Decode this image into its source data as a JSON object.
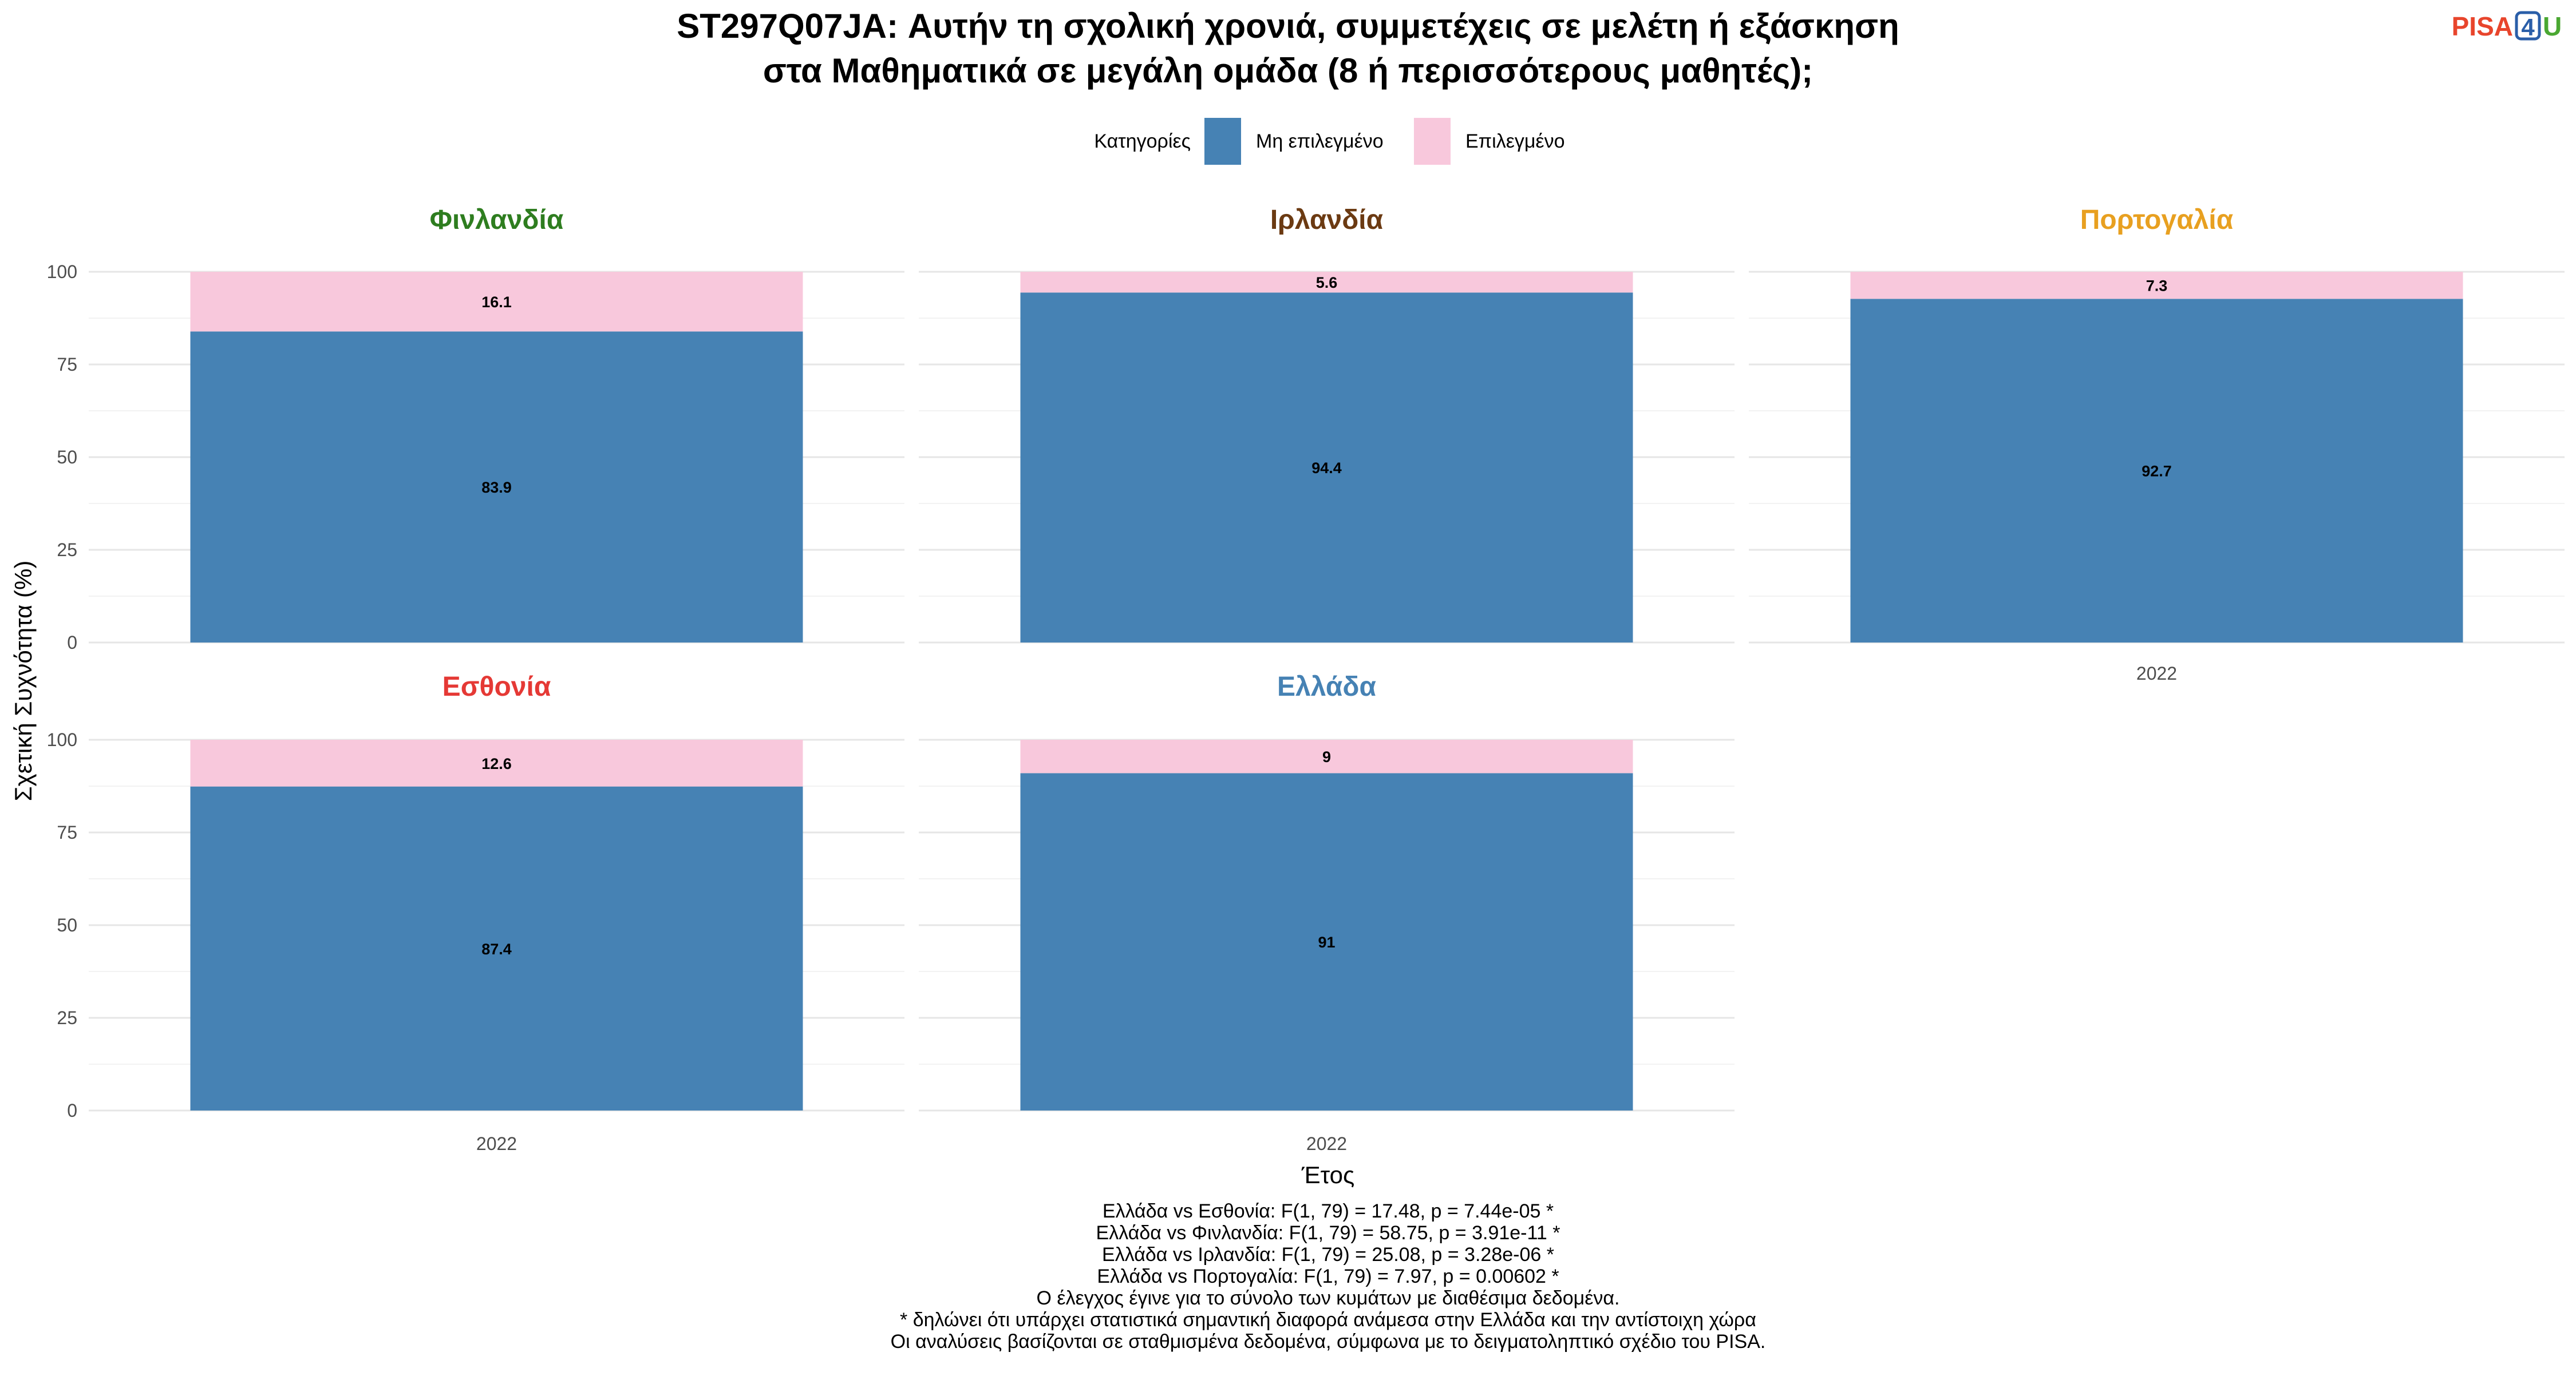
{
  "title_line1": "ST297Q07JA: Αυτήν τη σχολική χρονιά, συμμετέχεις σε μελέτη ή εξάσκηση",
  "title_line2": "στα Μαθηματικά σε μεγάλη ομάδα (8 ή περισσότερους μαθητές);",
  "logo": {
    "text_left": "PISA",
    "text_box": "4",
    "text_right": "U",
    "color_left": "#e8452c",
    "color_box": "#2a5ea8",
    "color_right": "#4aa832"
  },
  "legend": {
    "title": "Κατηγορίες",
    "items": [
      {
        "label": "Μη επιλεγμένο",
        "color": "#4682b4"
      },
      {
        "label": "Επιλεγμένο",
        "color": "#f8c8dc"
      }
    ],
    "placement": "top-center"
  },
  "ylabel": "Σχετική Συχνότητα (%)",
  "xlabel": "Έτος",
  "footnotes": [
    "Ελλάδα vs Εσθονία: F(1, 79) = 17.48, p = 7.44e-05 *",
    "Ελλάδα vs Φινλανδία: F(1, 79) = 58.75, p = 3.91e-11 *",
    "Ελλάδα vs Ιρλανδία: F(1, 79) = 25.08, p = 3.28e-06 *",
    "Ελλάδα vs Πορτογαλία: F(1, 79) = 7.97, p = 0.00602 *",
    "Ο έλεγχος έγινε για το σύνολο των κυμάτων με διαθέσιμα δεδομένα.",
    "* δηλώνει ότι υπάρχει στατιστικά σημαντική διαφορά ανάμεσα στην Ελλάδα και την αντίστοιχη χώρα",
    "Οι αναλύσεις βασίζονται σε σταθμισμένα δεδομένα, σύμφωνα με το δειγματοληπτικό σχέδιο του PISA."
  ],
  "chart_data": {
    "type": "bar",
    "stacked": true,
    "facets": [
      {
        "country": "Φινλανδία",
        "title_color": "#2e7d1f",
        "x": "2022",
        "not_selected": 83.9,
        "selected": 16.1,
        "not_selected_label": "83.9",
        "selected_label": "16.1"
      },
      {
        "country": "Ιρλανδία",
        "title_color": "#6b3a12",
        "x": "2022",
        "not_selected": 94.4,
        "selected": 5.6,
        "not_selected_label": "94.4",
        "selected_label": "5.6"
      },
      {
        "country": "Πορτογαλία",
        "title_color": "#e8a020",
        "x": "2022",
        "not_selected": 92.7,
        "selected": 7.3,
        "not_selected_label": "92.7",
        "selected_label": "7.3"
      },
      {
        "country": "Εσθονία",
        "title_color": "#e53935",
        "x": "2022",
        "not_selected": 87.4,
        "selected": 12.6,
        "not_selected_label": "87.4",
        "selected_label": "12.6"
      },
      {
        "country": "Ελλάδα",
        "title_color": "#4682b4",
        "x": "2022",
        "not_selected": 91,
        "selected": 9,
        "not_selected_label": "91",
        "selected_label": "9"
      }
    ],
    "series": [
      {
        "name": "Μη επιλεγμένο",
        "key": "not_selected",
        "color": "#4682b4"
      },
      {
        "name": "Επιλεγμένο",
        "key": "selected",
        "color": "#f8c8dc"
      }
    ],
    "ylim": [
      0,
      100
    ],
    "yticks": [
      "0",
      "25",
      "50",
      "75",
      "100"
    ],
    "grid": true
  }
}
